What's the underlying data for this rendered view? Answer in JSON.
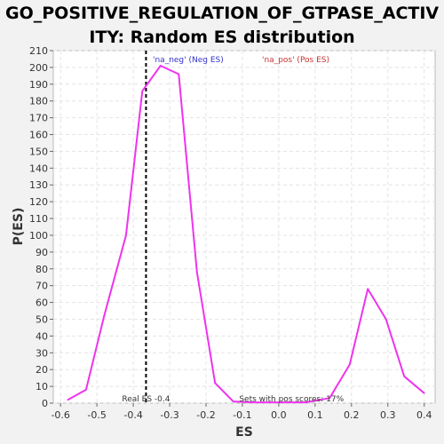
{
  "chart_data": {
    "type": "line",
    "title_line1": "GO_POSITIVE_REGULATION_OF_GTPASE_ACTIV",
    "title_line2": "ITY: Random ES distribution",
    "xlabel": "ES",
    "ylabel": "P(ES)",
    "xlim": [
      -0.62,
      0.43
    ],
    "ylim": [
      0,
      210
    ],
    "xticks": [
      -0.6,
      -0.5,
      -0.4,
      -0.3,
      -0.2,
      -0.1,
      0.0,
      0.1,
      0.2,
      0.3,
      0.4
    ],
    "xtick_labels": [
      "-0.6",
      "-0.5",
      "-0.4",
      "-0.3",
      "-0.2",
      "-0.1",
      "0.0",
      "0.1",
      "0.2",
      "0.3",
      "0.4"
    ],
    "yticks": [
      0,
      10,
      20,
      30,
      40,
      50,
      60,
      70,
      80,
      90,
      100,
      110,
      120,
      130,
      140,
      150,
      160,
      170,
      180,
      190,
      200,
      210
    ],
    "grid": true,
    "series": [
      {
        "color": "#ee33ee",
        "x": [
          -0.58,
          -0.53,
          -0.48,
          -0.42,
          -0.375,
          -0.325,
          -0.275,
          -0.225,
          -0.175,
          -0.125,
          -0.075,
          -0.025,
          0.025,
          0.075,
          0.14,
          0.195,
          0.245,
          0.295,
          0.345,
          0.4
        ],
        "y": [
          2,
          8,
          52,
          100,
          186,
          201,
          196,
          78,
          12,
          1,
          0.5,
          0.5,
          0.5,
          0.5,
          3,
          23,
          68,
          50,
          16,
          6
        ]
      }
    ],
    "legend": [
      {
        "label": "'na_neg' (Neg ES)",
        "color": "#3333cc"
      },
      {
        "label": "'na_pos' (Pos ES)",
        "color": "#cc3333"
      }
    ],
    "vline": {
      "x": -0.365,
      "color": "#000000",
      "style": "dashed"
    },
    "annotations": [
      {
        "text": "Real ES -0.4",
        "x": -0.365
      },
      {
        "text": "Sets with pos scores: 17%",
        "x": 0.035
      }
    ]
  }
}
